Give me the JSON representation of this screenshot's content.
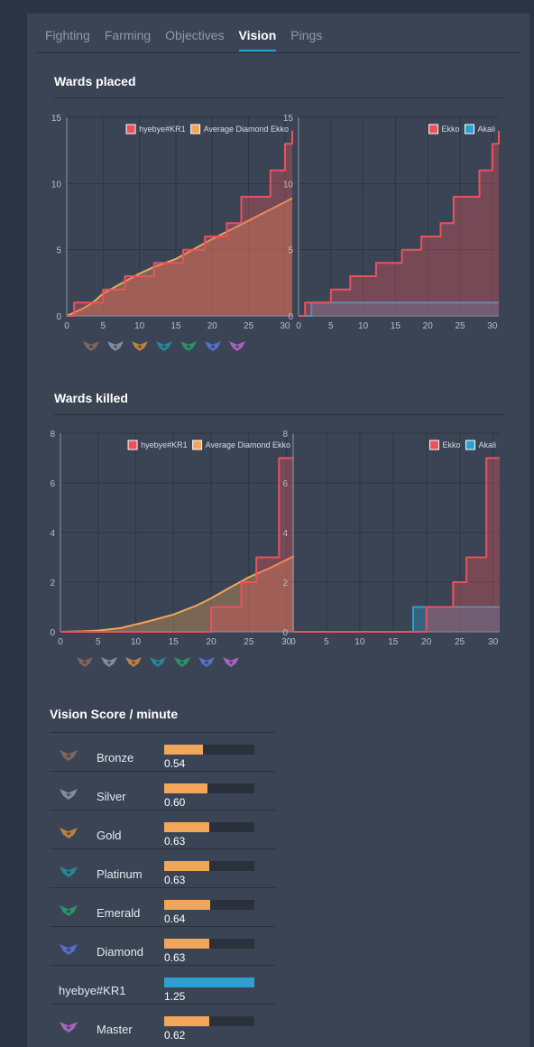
{
  "tabs": [
    {
      "label": "Fighting",
      "active": false
    },
    {
      "label": "Farming",
      "active": false
    },
    {
      "label": "Objectives",
      "active": false
    },
    {
      "label": "Vision",
      "active": true
    },
    {
      "label": "Pings",
      "active": false
    }
  ],
  "sections": {
    "wards_placed": "Wards placed",
    "wards_killed": "Wards killed",
    "vision_score": "Vision Score / minute"
  },
  "colors": {
    "player": "#e8535c",
    "average": "#f2a65a",
    "opponent": "#2e9fd0",
    "grid": "#2d3542",
    "axis": "#8c95a3"
  },
  "rank_icons": [
    "iron-icon",
    "bronze-icon",
    "silver-icon",
    "gold-icon",
    "platinum-icon",
    "emerald-icon",
    "diamond-icon",
    "master-icon"
  ],
  "chart_data": [
    {
      "id": "wards-placed-compare",
      "type": "line",
      "x_ticks": [
        0,
        5,
        10,
        15,
        20,
        25,
        30
      ],
      "y_ticks": [
        0,
        5,
        10,
        15
      ],
      "ylim": [
        0,
        15
      ],
      "xlim": [
        0,
        31
      ],
      "legend": "top-right",
      "series": [
        {
          "name": "hyebye#KR1",
          "color": "#e8535c",
          "step": true,
          "x": [
            0,
            1,
            3,
            4,
            5,
            6,
            8,
            10,
            11,
            12,
            14,
            15,
            16,
            19,
            20,
            22,
            24,
            26,
            28,
            29,
            30,
            31
          ],
          "y": [
            0,
            1,
            1,
            1,
            2,
            2,
            3,
            3,
            3,
            4,
            4,
            4,
            5,
            6,
            6,
            7,
            9,
            9,
            11,
            11,
            13,
            14
          ]
        },
        {
          "name": "Average Diamond Ekko",
          "color": "#f2a65a",
          "step": false,
          "x": [
            0,
            2,
            3,
            4,
            5,
            8,
            10,
            12,
            15,
            20,
            25,
            30,
            31
          ],
          "y": [
            0,
            0.5,
            0.8,
            1.2,
            1.7,
            2.6,
            3.2,
            3.7,
            4.3,
            5.8,
            7.2,
            8.6,
            8.9
          ]
        }
      ]
    },
    {
      "id": "wards-placed-matchup",
      "type": "line",
      "x_ticks": [
        0,
        5,
        10,
        15,
        20,
        25,
        30
      ],
      "y_ticks": [
        0,
        5,
        10,
        15
      ],
      "ylim": [
        0,
        15
      ],
      "xlim": [
        0,
        31
      ],
      "legend": "top-right",
      "series": [
        {
          "name": "Ekko",
          "color": "#e8535c",
          "step": true,
          "x": [
            0,
            1,
            3,
            4,
            5,
            6,
            8,
            10,
            11,
            12,
            14,
            15,
            16,
            19,
            20,
            22,
            24,
            26,
            28,
            29,
            30,
            31
          ],
          "y": [
            0,
            1,
            1,
            1,
            2,
            2,
            3,
            3,
            3,
            4,
            4,
            4,
            5,
            6,
            6,
            7,
            9,
            9,
            11,
            11,
            13,
            14
          ]
        },
        {
          "name": "Akali",
          "color": "#2e9fd0",
          "step": true,
          "x": [
            0,
            1,
            2,
            31
          ],
          "y": [
            0,
            0,
            1,
            1
          ]
        }
      ]
    },
    {
      "id": "wards-killed-compare",
      "type": "line",
      "x_ticks": [
        0,
        5,
        10,
        15,
        20,
        25,
        30
      ],
      "y_ticks": [
        0,
        2,
        4,
        6,
        8
      ],
      "ylim": [
        0,
        8
      ],
      "xlim": [
        0,
        31
      ],
      "legend": "top-right",
      "series": [
        {
          "name": "hyebye#KR1",
          "color": "#e8535c",
          "step": true,
          "x": [
            0,
            19,
            20,
            23,
            24,
            25,
            26,
            27,
            29,
            31
          ],
          "y": [
            0,
            0,
            1,
            1,
            2,
            2,
            3,
            3,
            7,
            7
          ]
        },
        {
          "name": "Average Diamond Ekko",
          "color": "#f2a65a",
          "step": false,
          "x": [
            0,
            3,
            5,
            8,
            10,
            12,
            15,
            18,
            20,
            22,
            25,
            28,
            31
          ],
          "y": [
            0,
            0.02,
            0.05,
            0.15,
            0.3,
            0.45,
            0.7,
            1.05,
            1.35,
            1.7,
            2.2,
            2.6,
            3.05
          ]
        }
      ]
    },
    {
      "id": "wards-killed-matchup",
      "type": "line",
      "x_ticks": [
        0,
        5,
        10,
        15,
        20,
        25,
        30
      ],
      "y_ticks": [
        0,
        2,
        4,
        6,
        8
      ],
      "ylim": [
        0,
        8
      ],
      "xlim": [
        0,
        31
      ],
      "legend": "top-right",
      "series": [
        {
          "name": "Ekko",
          "color": "#e8535c",
          "step": true,
          "x": [
            0,
            19,
            20,
            23,
            24,
            25,
            26,
            27,
            29,
            31
          ],
          "y": [
            0,
            0,
            1,
            1,
            2,
            2,
            3,
            3,
            7,
            7
          ]
        },
        {
          "name": "Akali",
          "color": "#2e9fd0",
          "step": true,
          "x": [
            0,
            17,
            18,
            31
          ],
          "y": [
            0,
            0,
            1,
            1
          ]
        }
      ]
    },
    {
      "id": "vision-score-per-minute",
      "type": "bar",
      "xlim": [
        0,
        1.25
      ],
      "rows": [
        {
          "label": "Bronze",
          "icon": "bronze-icon",
          "value": 0.54,
          "text": "0.54",
          "user": false
        },
        {
          "label": "Silver",
          "icon": "silver-icon",
          "value": 0.6,
          "text": "0.60",
          "user": false
        },
        {
          "label": "Gold",
          "icon": "gold-icon",
          "value": 0.63,
          "text": "0.63",
          "user": false
        },
        {
          "label": "Platinum",
          "icon": "platinum-icon",
          "value": 0.63,
          "text": "0.63",
          "user": false
        },
        {
          "label": "Emerald",
          "icon": "emerald-icon",
          "value": 0.64,
          "text": "0.64",
          "user": false
        },
        {
          "label": "Diamond",
          "icon": "diamond-icon",
          "value": 0.63,
          "text": "0.63",
          "user": false
        },
        {
          "label": "hyebye#KR1",
          "icon": "",
          "value": 1.25,
          "text": "1.25",
          "user": true
        },
        {
          "label": "Master",
          "icon": "master-icon",
          "value": 0.62,
          "text": "0.62",
          "user": false
        }
      ]
    }
  ]
}
